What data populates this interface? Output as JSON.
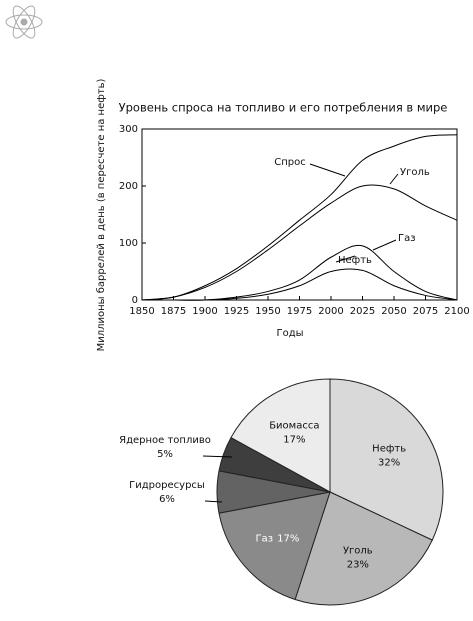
{
  "chart_data": [
    {
      "type": "line",
      "title": "Уровень спроса на топливо и его потребления в мире",
      "y_label": "Миллионы баррелей в день (в пересчете на нефть)",
      "x_label": "Годы",
      "x": [
        1850,
        1875,
        1900,
        1925,
        1950,
        1975,
        2000,
        2025,
        2050,
        2075,
        2100
      ],
      "series": [
        {
          "name": "Спрос",
          "color": "#000000",
          "values": [
            0,
            5,
            25,
            55,
            95,
            140,
            185,
            245,
            270,
            287,
            290
          ]
        },
        {
          "name": "Уголь",
          "color": "#000000",
          "values": [
            0,
            5,
            22,
            50,
            88,
            130,
            170,
            200,
            195,
            165,
            140
          ]
        },
        {
          "name": "Газ",
          "color": "#000000",
          "values": [
            0,
            0,
            0,
            5,
            15,
            35,
            75,
            95,
            50,
            15,
            0
          ]
        },
        {
          "name": "Нефть",
          "color": "#000000",
          "values": [
            0,
            0,
            0,
            3,
            10,
            25,
            50,
            52,
            25,
            8,
            0
          ]
        }
      ],
      "xlim": [
        1850,
        2100
      ],
      "xticks": [
        1850,
        1875,
        1900,
        1925,
        1950,
        1975,
        2000,
        2025,
        2050,
        2075,
        2100
      ],
      "ylim": [
        0,
        300
      ],
      "yticks": [
        0,
        100,
        200,
        300
      ]
    },
    {
      "type": "pie",
      "categories": [
        "Нефть",
        "Уголь",
        "Газ",
        "Гидроресурсы",
        "Ядерное топливо",
        "Биомасса"
      ],
      "values": [
        32,
        23,
        17,
        6,
        5,
        17
      ],
      "value_labels": [
        "32%",
        "23%",
        "17%",
        "6%",
        "5%",
        "17%"
      ],
      "colors": [
        "#d9d9d9",
        "#b8b8b8",
        "#8a8a8a",
        "#636363",
        "#3e3e3e",
        "#ececec"
      ]
    }
  ]
}
